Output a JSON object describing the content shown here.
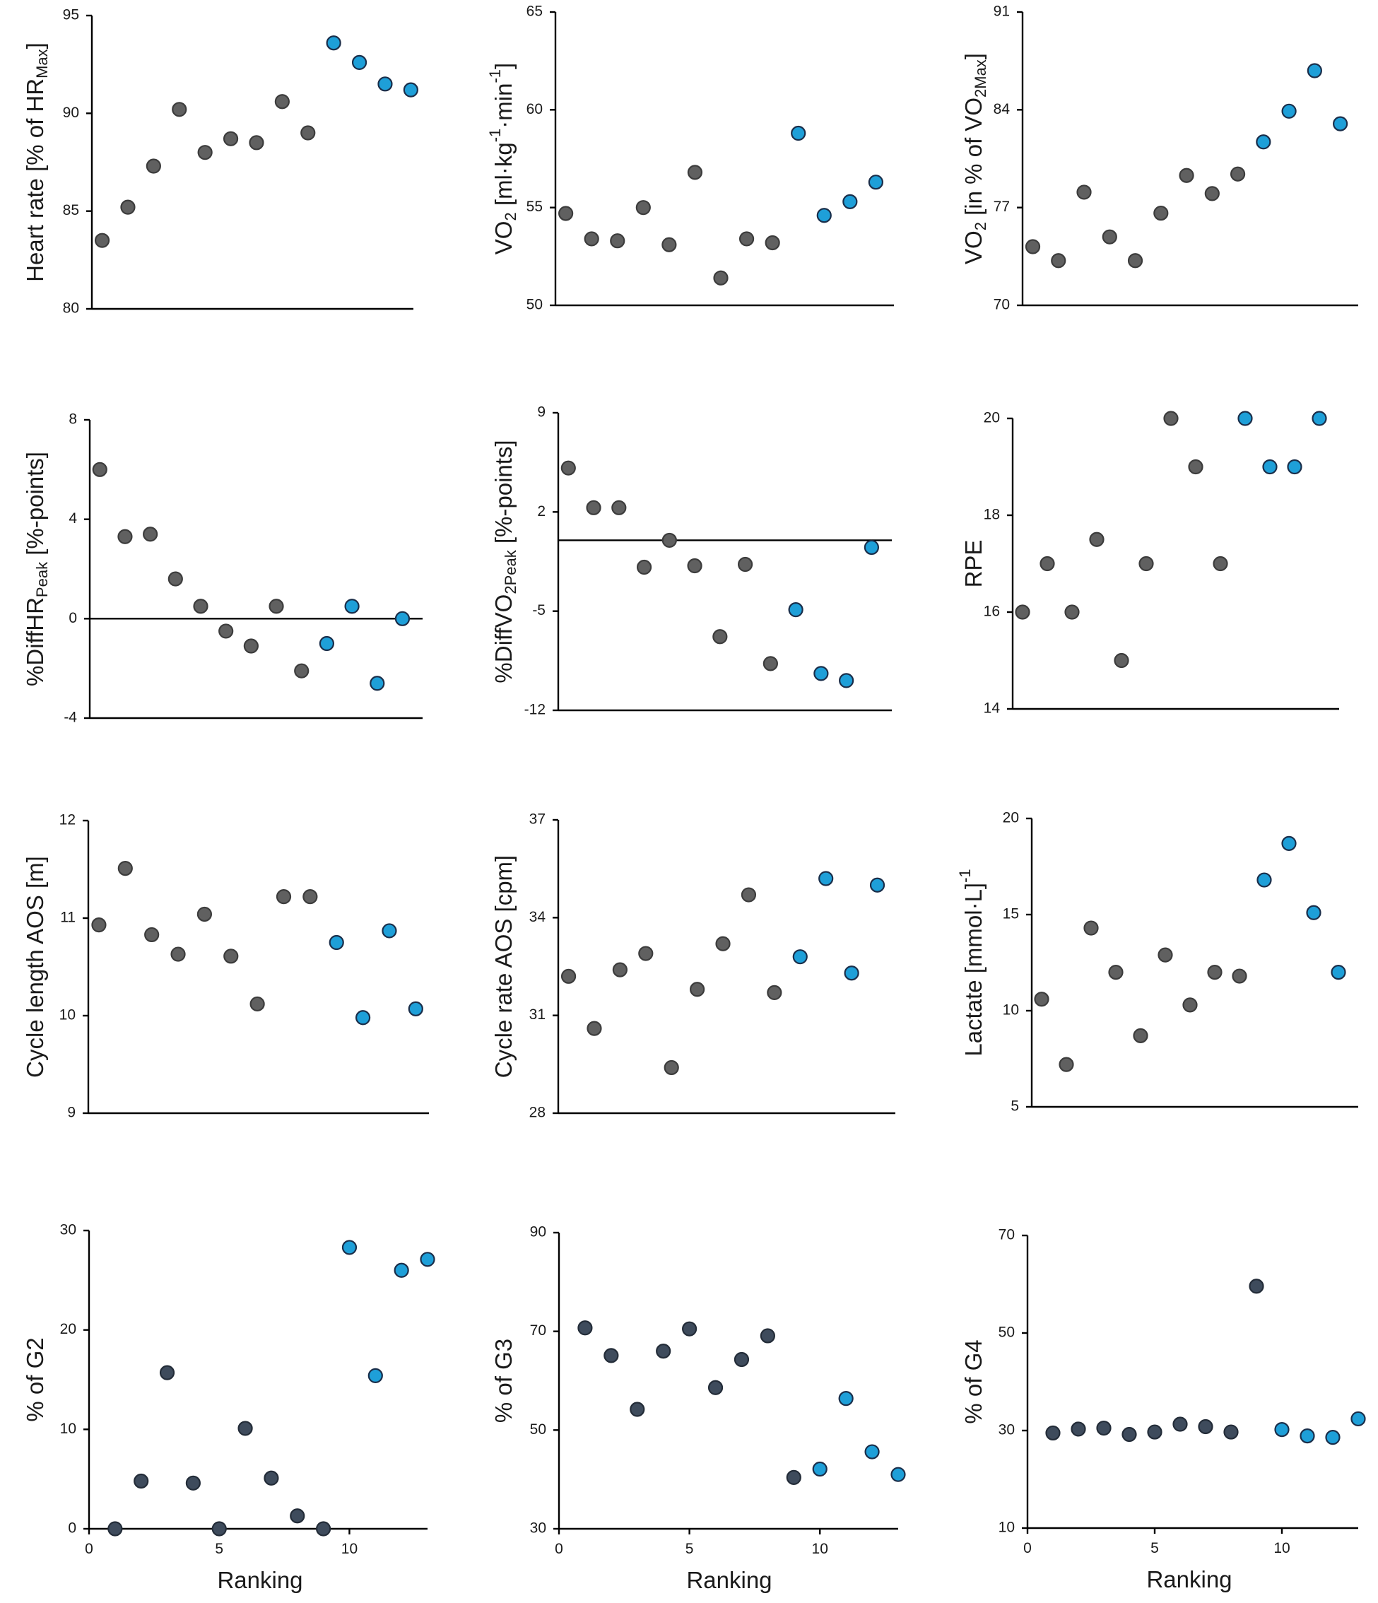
{
  "colors": {
    "gray_marker": "#606060",
    "gray_edge": "#3c3c3c",
    "navy_marker": "#3e4b5c",
    "navy_edge": "#232c38",
    "blue_marker": "#1e9fd8",
    "blue_edge": "#1a2e4a",
    "axis": "#000000",
    "text": "#1a1a1a"
  },
  "chart_data": [
    {
      "type": "scatter",
      "id": "hr",
      "ylabel": {
        "main": "Heart rate [% of HR",
        "sub": "Max",
        "tail": "]"
      },
      "xlabel": "",
      "xlim": [
        0.6,
        13.1
      ],
      "ylim": [
        80,
        95
      ],
      "yticks": [
        "80",
        "85",
        "90",
        "95"
      ],
      "xticks": [],
      "series": [
        {
          "name": "gray",
          "x": [
            1,
            2,
            3,
            4,
            5,
            6,
            7,
            8,
            9
          ],
          "y": [
            83.5,
            85.2,
            87.3,
            90.2,
            88.0,
            88.7,
            88.5,
            90.6,
            89.0
          ]
        },
        {
          "name": "blue",
          "x": [
            10,
            11,
            12,
            13
          ],
          "y": [
            93.6,
            92.6,
            91.5,
            91.2
          ]
        }
      ]
    },
    {
      "type": "scatter",
      "id": "vo2abs",
      "ylabel": {
        "main": "VO",
        "sub": "2",
        "tail": " [ml·kg",
        "sup1": "-1",
        "tail2": "·min",
        "sup2": "-1",
        "tail3": "]"
      },
      "xlabel": "",
      "xlim": [
        0.6,
        13.7
      ],
      "ylim": [
        50,
        65
      ],
      "yticks": [
        "50",
        "55",
        "60",
        "65"
      ],
      "xticks": [],
      "series": [
        {
          "name": "gray",
          "x": [
            1,
            2,
            3,
            4,
            5,
            6,
            7,
            8,
            9
          ],
          "y": [
            54.7,
            53.4,
            53.3,
            55.0,
            53.1,
            56.8,
            51.4,
            53.4,
            53.2
          ]
        },
        {
          "name": "blue",
          "x": [
            10,
            11,
            12,
            13
          ],
          "y": [
            58.8,
            54.6,
            55.3,
            56.3
          ]
        }
      ]
    },
    {
      "type": "scatter",
      "id": "vo2pct",
      "ylabel": {
        "main": "VO",
        "sub": "2",
        "tail": " [in % of VO",
        "sub2": "2Max",
        "tail2": "]"
      },
      "xlabel": "",
      "xlim": [
        0.6,
        13.7
      ],
      "ylim": [
        70,
        91
      ],
      "yticks": [
        "70",
        "77",
        "84",
        "91"
      ],
      "xticks": [],
      "series": [
        {
          "name": "gray",
          "x": [
            1,
            2,
            3,
            4,
            5,
            6,
            7,
            8,
            9
          ],
          "y": [
            74.2,
            73.2,
            78.1,
            74.9,
            73.2,
            76.6,
            79.3,
            78.0,
            79.4
          ]
        },
        {
          "name": "blue",
          "x": [
            10,
            11,
            12,
            13
          ],
          "y": [
            81.7,
            83.9,
            86.8,
            83.0
          ]
        }
      ]
    },
    {
      "type": "scatter",
      "id": "diffhr",
      "ylabel": {
        "main": "%DiffHR",
        "sub": "Peak",
        "tail": " [%-points]"
      },
      "xlabel": "",
      "xlim": [
        0.6,
        13.8
      ],
      "ylim": [
        -4,
        8
      ],
      "yticks": [
        "-4",
        "0",
        "4",
        "8"
      ],
      "xticks": [],
      "ref_line": 0,
      "series": [
        {
          "name": "gray",
          "x": [
            1,
            2,
            3,
            4,
            5,
            6,
            7,
            8,
            9
          ],
          "y": [
            6.0,
            3.3,
            3.4,
            1.6,
            0.5,
            -0.5,
            -1.1,
            0.5,
            -2.1
          ]
        },
        {
          "name": "blue",
          "x": [
            10,
            11,
            12,
            13
          ],
          "y": [
            -1.0,
            0.5,
            -2.6,
            0.0
          ]
        }
      ]
    },
    {
      "type": "scatter",
      "id": "diffvo2",
      "ylabel": {
        "main": "%DiffVO",
        "sub": "2Peak",
        "tail": " [%-points]"
      },
      "xlabel": "",
      "xlim": [
        0.6,
        13.8
      ],
      "ylim": [
        -12,
        9
      ],
      "yticks": [
        "-12",
        "-5",
        "2",
        "9"
      ],
      "xticks": [],
      "ref_line": 0,
      "series": [
        {
          "name": "gray",
          "x": [
            1,
            2,
            3,
            4,
            5,
            6,
            7,
            8,
            9
          ],
          "y": [
            5.1,
            2.3,
            2.3,
            -1.9,
            0.0,
            -1.8,
            -6.8,
            -1.7,
            -8.7
          ]
        },
        {
          "name": "blue",
          "x": [
            10,
            11,
            12,
            13
          ],
          "y": [
            -4.9,
            -9.4,
            -9.9,
            -0.5
          ]
        }
      ]
    },
    {
      "type": "scatter",
      "id": "rpe",
      "ylabel": {
        "main": "RPE"
      },
      "xlabel": "",
      "xlim": [
        0.6,
        13.8
      ],
      "ylim": [
        14,
        20
      ],
      "yticks": [
        "14",
        "16",
        "18",
        "20"
      ],
      "xticks": [],
      "series": [
        {
          "name": "gray",
          "x": [
            1,
            2,
            3,
            4,
            5,
            6,
            7,
            8,
            9
          ],
          "y": [
            16,
            17,
            16,
            17.5,
            15,
            17,
            20,
            19,
            17
          ]
        },
        {
          "name": "blue",
          "x": [
            10,
            11,
            12,
            13
          ],
          "y": [
            20,
            19,
            19,
            20
          ]
        }
      ]
    },
    {
      "type": "scatter",
      "id": "cyclelength",
      "ylabel": {
        "main": "Cycle length AOS [m]"
      },
      "xlabel": "",
      "xlim": [
        0.6,
        13.5
      ],
      "ylim": [
        9,
        12
      ],
      "yticks": [
        "9",
        "10",
        "11",
        "12"
      ],
      "xticks": [],
      "series": [
        {
          "name": "gray",
          "x": [
            1,
            2,
            3,
            4,
            5,
            6,
            7,
            8,
            9
          ],
          "y": [
            10.93,
            11.51,
            10.83,
            10.63,
            11.04,
            10.61,
            10.12,
            11.22,
            11.22
          ]
        },
        {
          "name": "blue",
          "x": [
            10,
            11,
            12,
            13
          ],
          "y": [
            10.75,
            9.98,
            10.87,
            10.07
          ]
        }
      ]
    },
    {
      "type": "scatter",
      "id": "cyclerate",
      "ylabel": {
        "main": "Cycle rate AOS [cpm]"
      },
      "xlabel": "",
      "xlim": [
        0.6,
        13.7
      ],
      "ylim": [
        28,
        37
      ],
      "yticks": [
        "28",
        "31",
        "34",
        "37"
      ],
      "xticks": [],
      "series": [
        {
          "name": "gray",
          "x": [
            1,
            2,
            3,
            4,
            5,
            6,
            7,
            8,
            9
          ],
          "y": [
            32.2,
            30.6,
            32.4,
            32.9,
            29.4,
            31.8,
            33.2,
            34.7,
            31.7
          ]
        },
        {
          "name": "blue",
          "x": [
            10,
            11,
            12,
            13
          ],
          "y": [
            32.8,
            35.2,
            32.3,
            35.0
          ]
        }
      ]
    },
    {
      "type": "scatter",
      "id": "lactate",
      "ylabel": {
        "main": "Lactate [mmol·L",
        "sup1": "-1",
        "tail": "]"
      },
      "xlabel": "",
      "xlim": [
        0.6,
        13.8
      ],
      "ylim": [
        5,
        20
      ],
      "yticks": [
        "5",
        "10",
        "15",
        "20"
      ],
      "xticks": [],
      "series": [
        {
          "name": "gray",
          "x": [
            1,
            2,
            3,
            4,
            5,
            6,
            7,
            8,
            9
          ],
          "y": [
            10.6,
            7.2,
            14.3,
            12.0,
            8.7,
            12.9,
            10.3,
            12.0,
            11.8
          ]
        },
        {
          "name": "blue",
          "x": [
            10,
            11,
            12,
            13
          ],
          "y": [
            16.8,
            18.7,
            15.1,
            12.0
          ]
        }
      ]
    },
    {
      "type": "scatter",
      "id": "g2",
      "ylabel": {
        "main": "% of G2"
      },
      "xlabel": "Ranking",
      "xlim": [
        0,
        13
      ],
      "ylim": [
        0,
        30
      ],
      "yticks": [
        "0",
        "10",
        "20",
        "30"
      ],
      "xticks": [
        "0",
        "5",
        "10"
      ],
      "series": [
        {
          "name": "navy",
          "x": [
            1,
            2,
            3,
            4,
            5,
            6,
            7,
            8,
            9
          ],
          "y": [
            0,
            4.8,
            15.7,
            4.6,
            0,
            10.1,
            5.1,
            1.3,
            0
          ]
        },
        {
          "name": "blue",
          "x": [
            10,
            11,
            12,
            13
          ],
          "y": [
            28.3,
            15.4,
            26.0,
            27.1
          ]
        }
      ]
    },
    {
      "type": "scatter",
      "id": "g3",
      "ylabel": {
        "main": "% of G3"
      },
      "xlabel": "Ranking",
      "xlim": [
        0,
        13
      ],
      "ylim": [
        30,
        90
      ],
      "yticks": [
        "30",
        "50",
        "70",
        "90"
      ],
      "xticks": [
        "0",
        "5",
        "10"
      ],
      "series": [
        {
          "name": "navy",
          "x": [
            1,
            2,
            3,
            4,
            5,
            6,
            7,
            8,
            9
          ],
          "y": [
            70.7,
            65.1,
            54.2,
            66.0,
            70.5,
            58.6,
            64.3,
            69.1,
            40.4
          ]
        },
        {
          "name": "blue",
          "x": [
            10,
            11,
            12,
            13
          ],
          "y": [
            42.1,
            56.4,
            45.6,
            41.0
          ]
        }
      ]
    },
    {
      "type": "scatter",
      "id": "g4",
      "ylabel": {
        "main": "% of G4"
      },
      "xlabel": "Ranking",
      "xlim": [
        0,
        13
      ],
      "ylim": [
        10,
        70
      ],
      "yticks": [
        "10",
        "30",
        "50",
        "70"
      ],
      "xticks": [
        "0",
        "5",
        "10"
      ],
      "series": [
        {
          "name": "navy",
          "x": [
            1,
            2,
            3,
            4,
            5,
            6,
            7,
            8,
            9
          ],
          "y": [
            29.5,
            30.3,
            30.5,
            29.2,
            29.7,
            31.3,
            30.8,
            29.7,
            59.6
          ]
        },
        {
          "name": "blue",
          "x": [
            10,
            11,
            12,
            13
          ],
          "y": [
            30.2,
            28.9,
            28.6,
            32.4
          ]
        }
      ]
    }
  ]
}
